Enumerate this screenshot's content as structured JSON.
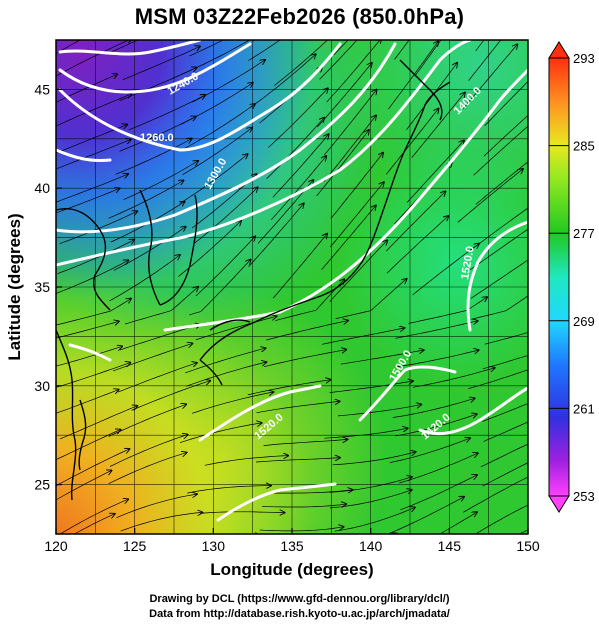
{
  "title": "MSM 03Z22Feb2026 (850.0hPa)",
  "map": {
    "xlabel": "Longitude (degrees)",
    "ylabel": "Latitude  (degrees)",
    "x_ticks": [
      "120",
      "125",
      "130",
      "135",
      "140",
      "145",
      "150"
    ],
    "y_ticks": [
      "25",
      "30",
      "35",
      "40",
      "45"
    ],
    "xlim": [
      120,
      150
    ],
    "ylim": [
      22.5,
      47.5
    ],
    "contour_labels": [
      "1240.0",
      "1260.0",
      "1300.0",
      "1400.0",
      "1520.0",
      "1500.0",
      "1520.0",
      "1420.0"
    ]
  },
  "colorbar": {
    "ticks": [
      "293",
      "285",
      "277",
      "269",
      "261",
      "253"
    ],
    "min": 253,
    "max": 293
  },
  "footer": {
    "line1": "Drawing by DCL (https://www.gfd-dennou.org/library/dcl/)",
    "line2": "Data from http://database.rish.kyoto-u.ac.jp/arch/jmadata/"
  }
}
